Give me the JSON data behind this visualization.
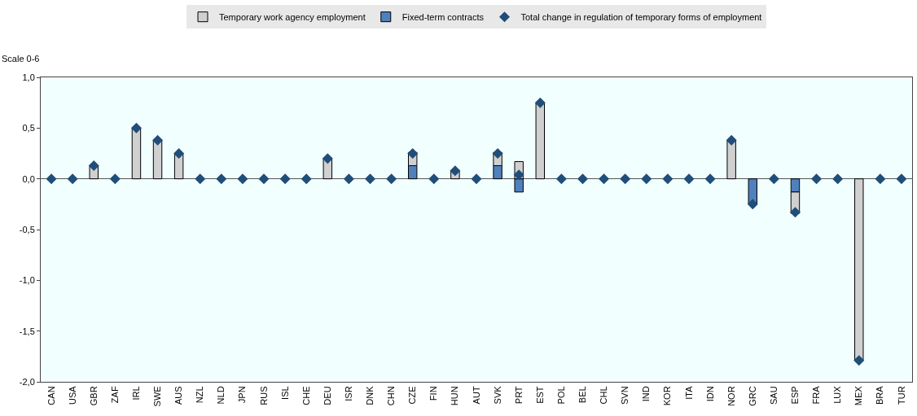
{
  "chart_data": {
    "type": "bar",
    "stacked": true,
    "ylabel": "Scale 0-6",
    "legend": "top",
    "categories": [
      "CAN",
      "USA",
      "GBR",
      "ZAF",
      "IRL",
      "SWE",
      "AUS",
      "NZL",
      "NLD",
      "JPN",
      "RUS",
      "ISL",
      "CHE",
      "DEU",
      "ISR",
      "DNK",
      "CHN",
      "CZE",
      "FIN",
      "HUN",
      "AUT",
      "SVK",
      "PRT",
      "EST",
      "POL",
      "BEL",
      "CHL",
      "SVN",
      "IND",
      "KOR",
      "ITA",
      "IDN",
      "NOR",
      "GRC",
      "SAU",
      "ESP",
      "FRA",
      "LUX",
      "MEX",
      "BRA",
      "TUR"
    ],
    "series": [
      {
        "name": "Fixed-term contracts",
        "color": "#4f81bd",
        "values": [
          null,
          null,
          null,
          null,
          null,
          null,
          null,
          null,
          null,
          null,
          null,
          null,
          null,
          null,
          null,
          null,
          null,
          0.13,
          null,
          null,
          null,
          0.13,
          -0.13,
          null,
          null,
          null,
          null,
          null,
          null,
          null,
          null,
          null,
          null,
          -0.25,
          null,
          -0.13,
          null,
          null,
          null,
          null,
          null
        ]
      },
      {
        "name": "Temporary work agency employment",
        "color": "#d0d0d0",
        "values": [
          null,
          null,
          0.13,
          null,
          0.5,
          0.38,
          0.25,
          null,
          null,
          null,
          null,
          null,
          null,
          0.2,
          null,
          null,
          null,
          0.13,
          null,
          0.08,
          null,
          0.13,
          0.17,
          0.75,
          null,
          null,
          null,
          null,
          null,
          null,
          null,
          null,
          0.38,
          null,
          null,
          -0.21,
          null,
          null,
          -1.79,
          null,
          null
        ]
      },
      {
        "name": "Total change in regulation of temporary forms of employment",
        "type": "scatter",
        "marker": "diamond",
        "color": "#1f4e79",
        "values": [
          0,
          0,
          0.13,
          0,
          0.5,
          0.38,
          0.25,
          0,
          0,
          0,
          0,
          0,
          0,
          0.2,
          0,
          0,
          0,
          0.25,
          0,
          0.08,
          0,
          0.25,
          0.04,
          0.75,
          0,
          0,
          0,
          0,
          0,
          0,
          0,
          0,
          0.38,
          -0.25,
          0,
          -0.33,
          0,
          0,
          -1.79,
          0,
          0
        ]
      }
    ],
    "ylim": [
      -2,
      1
    ],
    "yticks": [
      {
        "value": -2,
        "label": "-2,0"
      },
      {
        "value": -1.5,
        "label": "-1,5"
      },
      {
        "value": -1,
        "label": "-1,0"
      },
      {
        "value": -0.5,
        "label": "-0,5"
      },
      {
        "value": 0,
        "label": "0,0"
      },
      {
        "value": 0.5,
        "label": "0,5"
      },
      {
        "value": 1,
        "label": "1,0"
      }
    ]
  }
}
